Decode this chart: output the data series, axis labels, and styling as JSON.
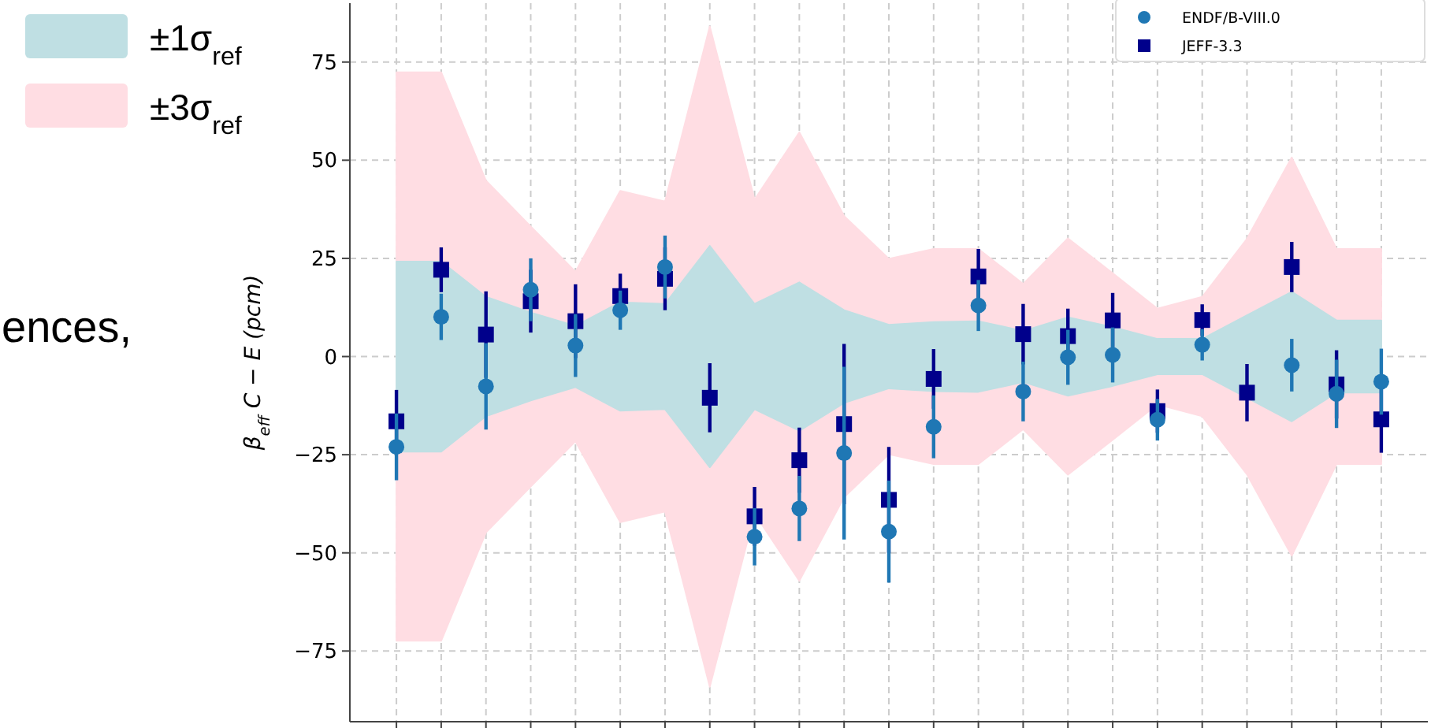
{
  "chart_data": {
    "type": "scatter",
    "ylabel": "β$_{eff}$ C − E (pcm)",
    "categories": [
      null,
      null,
      null,
      null,
      null,
      null,
      null,
      null,
      null,
      null,
      null,
      null,
      null,
      null,
      null,
      null,
      null,
      null,
      null,
      null,
      null,
      null,
      null
    ],
    "ylim": [
      -93,
      90
    ],
    "yticks": [
      -75,
      -50,
      -25,
      0,
      25,
      50,
      75
    ],
    "grid": true,
    "legend": "top left",
    "annotations": [
      "ences,"
    ],
    "series": [
      {
        "name": "±1σ$_{ref}$",
        "type": "area",
        "color": "#bfdfe3",
        "values": [
          24.2,
          24.2,
          15.2,
          11.2,
          7.8,
          13.8,
          13.4,
          28.2,
          13.4,
          18.9,
          11.8,
          8.1,
          8.8,
          9,
          6.5,
          10,
          7.5,
          4.5,
          4.5,
          10.5,
          16.5,
          9.2,
          9.2
        ]
      },
      {
        "type": "area",
        "color": "#bfdfe3",
        "values": [
          -24.2,
          -24.2,
          -15.2,
          -11.2,
          -7.8,
          -13.8,
          -13.4,
          -28.2,
          -13.4,
          -18.9,
          -11.8,
          -8.1,
          -8.8,
          -9,
          -6.5,
          -10,
          -7.5,
          -4.5,
          -4.5,
          -10.5,
          -16.5,
          -9.2,
          -9.2
        ]
      },
      {
        "name": "±3σ$_{ref}$",
        "type": "area",
        "color": "#ffdde3",
        "values": [
          72.4,
          72.4,
          44.8,
          33.1,
          21.6,
          42.2,
          39.5,
          84.1,
          40,
          57.1,
          35.8,
          24.9,
          27.4,
          27.4,
          18.5,
          30.1,
          21.2,
          12.2,
          15.2,
          30,
          50.7,
          27.4,
          27.4
        ]
      },
      {
        "type": "area",
        "color": "#ffdde3",
        "values": [
          -72.4,
          -72.4,
          -44.8,
          -33.1,
          -21.6,
          -42.2,
          -39.5,
          -84.1,
          -40,
          -57.1,
          -35.8,
          -24.9,
          -27.4,
          -27.4,
          -18.5,
          -30.1,
          -21.2,
          -12.2,
          -15.2,
          -30,
          -50.7,
          -27.4,
          -27.4
        ]
      },
      {
        "name": "ENDF/B-VIII.0",
        "marker": "circle",
        "color": "#1f77b4",
        "values": [
          -23,
          10.1,
          -7.6,
          17,
          2.8,
          11.8,
          22.8,
          null,
          -45.9,
          -38.7,
          -24.6,
          -44.6,
          -17.9,
          13,
          -8.9,
          -0.2,
          0.4,
          -16.1,
          3,
          null,
          -2.2,
          -9.5,
          -6.4
        ],
        "errors": [
          8.5,
          5.9,
          11,
          8,
          8,
          5,
          8,
          null,
          7.3,
          8.3,
          22,
          13,
          8,
          6.5,
          7.6,
          7,
          7,
          5.3,
          4,
          null,
          6.7,
          8.7,
          8.4
        ]
      },
      {
        "name": "JEFF-3.3",
        "marker": "square",
        "color": "#00008b",
        "values": [
          -16.5,
          22.1,
          5.6,
          14.1,
          9,
          15.4,
          19.8,
          -10.5,
          -40.7,
          -26.4,
          -17.2,
          -36.5,
          -5.7,
          20.4,
          5.7,
          5.2,
          9.2,
          -13.9,
          9.3,
          -9.2,
          22.8,
          -7.1,
          -16
        ],
        "errors": [
          8,
          5.7,
          11,
          8,
          9.4,
          5.7,
          8,
          8.8,
          7.5,
          8.3,
          20.4,
          13.5,
          7.6,
          7,
          7.7,
          7,
          7,
          5.5,
          4,
          7.3,
          6.4,
          8.7,
          8.5
        ]
      }
    ]
  }
}
